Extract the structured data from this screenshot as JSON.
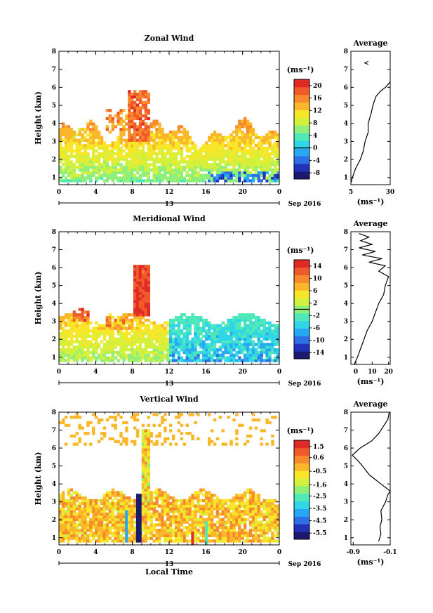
{
  "colors": {
    "jet": [
      "#1a1a6e",
      "#2233bb",
      "#2e6fe6",
      "#27a8f2",
      "#2fd6e8",
      "#4fe8b8",
      "#8ef07a",
      "#d2f03c",
      "#f8e628",
      "#fbb72a",
      "#f78a2c",
      "#f05a2a",
      "#e02a26"
    ],
    "contour": "#000000",
    "axis": "#000000"
  },
  "chart_data": [
    {
      "type": "heatmap",
      "title": "Zonal Wind",
      "xlabel": "",
      "ylabel": "Height (km)",
      "xticks": [
        "0",
        "4",
        "8",
        "12",
        "16",
        "20",
        "0"
      ],
      "xticks_values": [
        0,
        4,
        8,
        12,
        16,
        20,
        24
      ],
      "yticks": [
        "1",
        "2",
        "3",
        "4",
        "5",
        "6",
        "7",
        "8"
      ],
      "date_day": "13",
      "date_label": "Sep 2016",
      "xlim": [
        0,
        24
      ],
      "ylim": [
        0.6,
        8.0
      ],
      "colorbar": {
        "unit": "(ms⁻¹)",
        "ticks": [
          "20",
          "16",
          "12",
          "8",
          "4",
          "0",
          "-4",
          "-8"
        ],
        "tick_values": [
          20,
          16,
          12,
          8,
          4,
          0,
          -4,
          -8
        ],
        "range": [
          -10,
          22
        ],
        "zero_line": 0
      },
      "average": {
        "title": "Average",
        "xlabel": "(ms⁻¹)",
        "xticks": [
          "5",
          "30"
        ],
        "xticks_values": [
          5,
          30
        ],
        "xlim": [
          5,
          30
        ],
        "marker": "<",
        "profile_h": [
          0.7,
          1.0,
          1.5,
          2.0,
          2.5,
          3.0,
          3.5,
          4.0,
          4.3,
          4.6,
          5.0,
          5.5,
          5.8,
          6.0,
          6.3
        ],
        "profile_v": [
          5,
          6,
          8,
          11,
          13,
          14,
          16,
          16,
          17,
          18,
          19,
          21,
          24,
          27,
          30
        ]
      }
    },
    {
      "type": "heatmap",
      "title": "Meridional Wind",
      "xlabel": "",
      "ylabel": "Height (km)",
      "xticks": [
        "0",
        "4",
        "8",
        "12",
        "16",
        "20",
        "0"
      ],
      "xticks_values": [
        0,
        4,
        8,
        12,
        16,
        20,
        24
      ],
      "yticks": [
        "1",
        "2",
        "3",
        "4",
        "5",
        "6",
        "7",
        "8"
      ],
      "date_day": "13",
      "date_label": "Sep 2016",
      "xlim": [
        0,
        24
      ],
      "ylim": [
        0.6,
        8.0
      ],
      "colorbar": {
        "unit": "(ms⁻¹)",
        "ticks": [
          "14",
          "10",
          "6",
          "2",
          "-2",
          "-6",
          "-10",
          "-14"
        ],
        "tick_values": [
          14,
          10,
          6,
          2,
          -2,
          -6,
          -10,
          -14
        ],
        "range": [
          -16,
          16
        ],
        "zero_line": 0
      },
      "average": {
        "title": "Average",
        "xlabel": "(ms⁻¹)",
        "xticks": [
          "0",
          "10",
          "20"
        ],
        "xticks_values": [
          0,
          10,
          20
        ],
        "xlim": [
          -3,
          21
        ],
        "profile_h": [
          0.6,
          1.0,
          1.5,
          2.0,
          2.5,
          3.0,
          3.5,
          4.0,
          4.5,
          5.0,
          5.5,
          5.8,
          6.1,
          6.3,
          6.5,
          6.7,
          6.9,
          7.1,
          7.3,
          7.5,
          7.7,
          7.9
        ],
        "profile_v": [
          -1,
          1,
          3,
          5,
          7,
          10,
          12,
          14,
          17,
          18,
          20,
          14,
          18,
          8,
          16,
          4,
          12,
          2,
          10,
          3,
          8,
          2
        ]
      }
    },
    {
      "type": "heatmap",
      "title": "Vertical Wind",
      "xlabel": "Local Time",
      "ylabel": "Height (km)",
      "xticks": [
        "0",
        "4",
        "8",
        "12",
        "16",
        "20",
        "0"
      ],
      "xticks_values": [
        0,
        4,
        8,
        12,
        16,
        20,
        24
      ],
      "yticks": [
        "1",
        "2",
        "3",
        "4",
        "5",
        "6",
        "7",
        "8"
      ],
      "date_day": "13",
      "date_label": "Sep 2016",
      "xlim": [
        0,
        24
      ],
      "ylim": [
        0.6,
        8.0
      ],
      "colorbar": {
        "unit": "(ms⁻¹)",
        "ticks": [
          "1.5",
          "0.6",
          "-0.5",
          "-1.6",
          "-2.5",
          "-3.5",
          "-4.5",
          "-5.5"
        ],
        "tick_values": [
          1.5,
          0.6,
          -0.5,
          -1.6,
          -2.5,
          -3.5,
          -4.5,
          -5.5
        ],
        "range": [
          -6,
          2
        ],
        "zero_line": null
      },
      "average": {
        "title": "Average",
        "xlabel": "(ms⁻¹)",
        "xticks": [
          "-0.9",
          "-0.1"
        ],
        "xticks_values": [
          -0.9,
          -0.1
        ],
        "xlim": [
          -0.95,
          -0.1
        ],
        "profile_h": [
          0.8,
          1.2,
          1.6,
          2.0,
          2.5,
          3.0,
          3.4,
          3.6,
          4.0,
          4.5,
          5.0,
          5.3,
          5.6,
          6.0,
          6.4,
          6.8,
          7.2,
          7.6,
          8.0
        ],
        "profile_v": [
          -0.35,
          -0.3,
          -0.32,
          -0.28,
          -0.3,
          -0.2,
          -0.15,
          -0.1,
          -0.3,
          -0.55,
          -0.7,
          -0.8,
          -0.92,
          -0.75,
          -0.5,
          -0.35,
          -0.25,
          -0.15,
          -0.12
        ]
      }
    }
  ]
}
